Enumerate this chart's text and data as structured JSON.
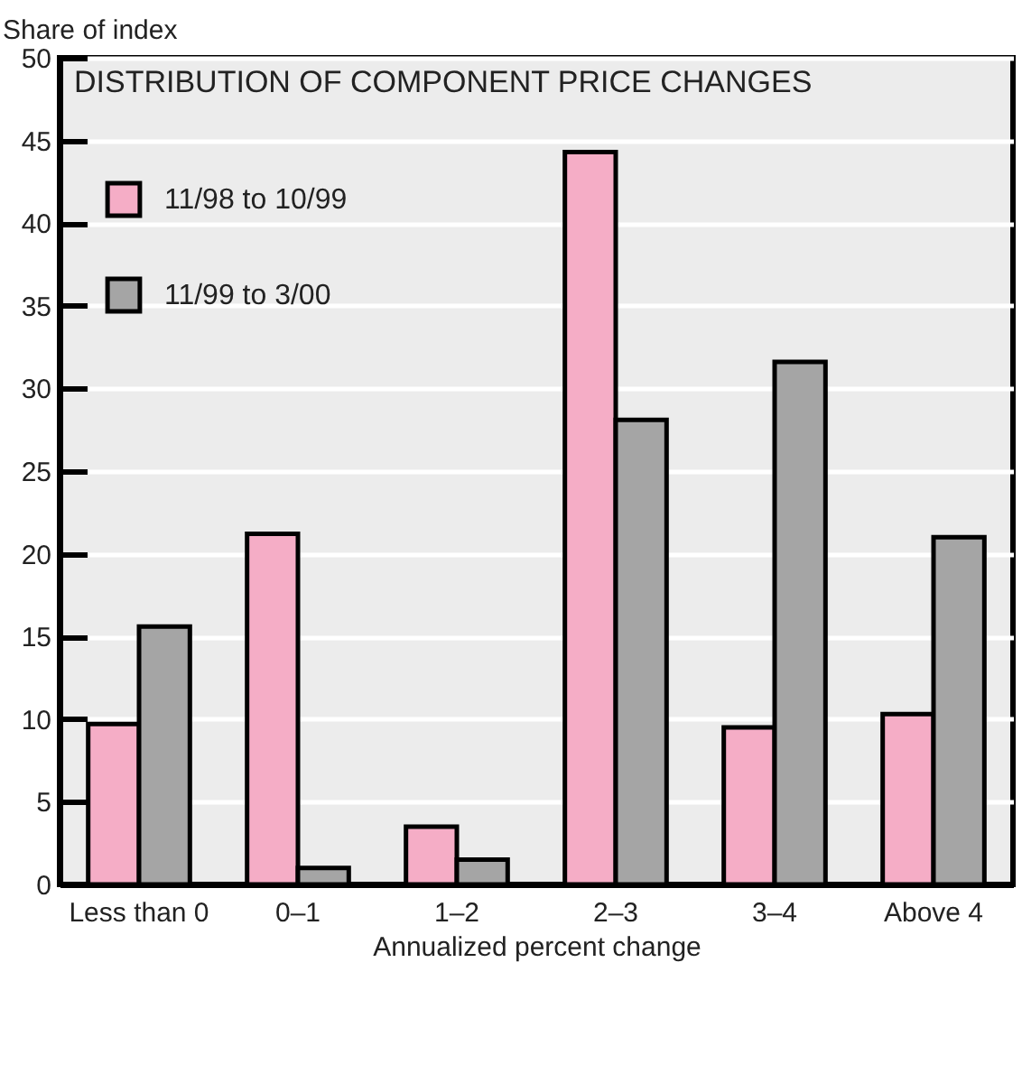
{
  "chart_data": {
    "type": "bar",
    "title": "DISTRIBUTION OF COMPONENT PRICE CHANGES",
    "ylabel": "Share of index",
    "xlabel": "Annualized percent change",
    "categories": [
      "Less than 0",
      "0–1",
      "1–2",
      "2–3",
      "3–4",
      "Above 4"
    ],
    "series": [
      {
        "name": "11/98 to 10/99",
        "color": "#f5adc6",
        "values": [
          9.7,
          21.2,
          3.5,
          44.3,
          9.5,
          10.3
        ]
      },
      {
        "name": "11/99 to 3/00",
        "color": "#a5a5a5",
        "values": [
          15.6,
          1.0,
          1.5,
          28.1,
          31.6,
          21.0
        ]
      }
    ],
    "ylim": [
      0,
      50
    ],
    "yticks": [
      0,
      5,
      10,
      15,
      20,
      25,
      30,
      35,
      40,
      45,
      50
    ],
    "grid": "y",
    "legend": "top left"
  }
}
